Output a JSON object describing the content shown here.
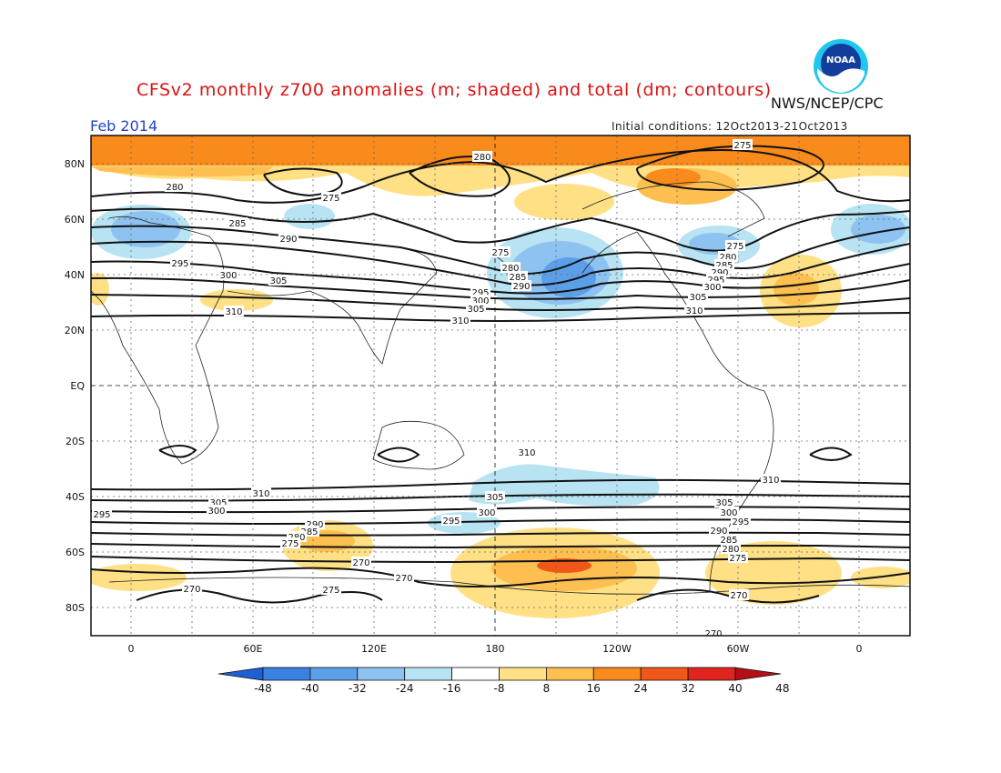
{
  "header": {
    "title": "CFSv2 monthly z700 anomalies (m; shaded) and total (dm; contours)",
    "agency": "NWS/NCEP/CPC",
    "valid_month": "Feb 2014",
    "initial_conditions": "Initial conditions: 12Oct2013-21Oct2013",
    "logo_text": "NOAA"
  },
  "map": {
    "projection": "cylindrical equidistant",
    "lat_labels": [
      "80N",
      "60N",
      "40N",
      "20N",
      "EQ",
      "20S",
      "40S",
      "60S",
      "80S"
    ],
    "lon_labels": [
      "0",
      "60E",
      "120E",
      "180",
      "120W",
      "60W",
      "0"
    ],
    "contour_labels": [
      "280",
      "275",
      "285",
      "290",
      "295",
      "300",
      "305",
      "310",
      "270"
    ]
  },
  "colorbar": {
    "tick_labels": [
      "-48",
      "-40",
      "-32",
      "-24",
      "-16",
      "-8",
      "8",
      "16",
      "24",
      "32",
      "40",
      "48"
    ],
    "colors": [
      "#1e5fd6",
      "#3a82e2",
      "#5b9fe8",
      "#8ec2f0",
      "#b7e3f3",
      "#ffffff",
      "#ffe085",
      "#fdbf4f",
      "#f98a1c",
      "#f2571a",
      "#e1241e",
      "#b50f15"
    ]
  },
  "colors": {
    "title": "#dd1111",
    "valid_month": "#2244cc"
  }
}
